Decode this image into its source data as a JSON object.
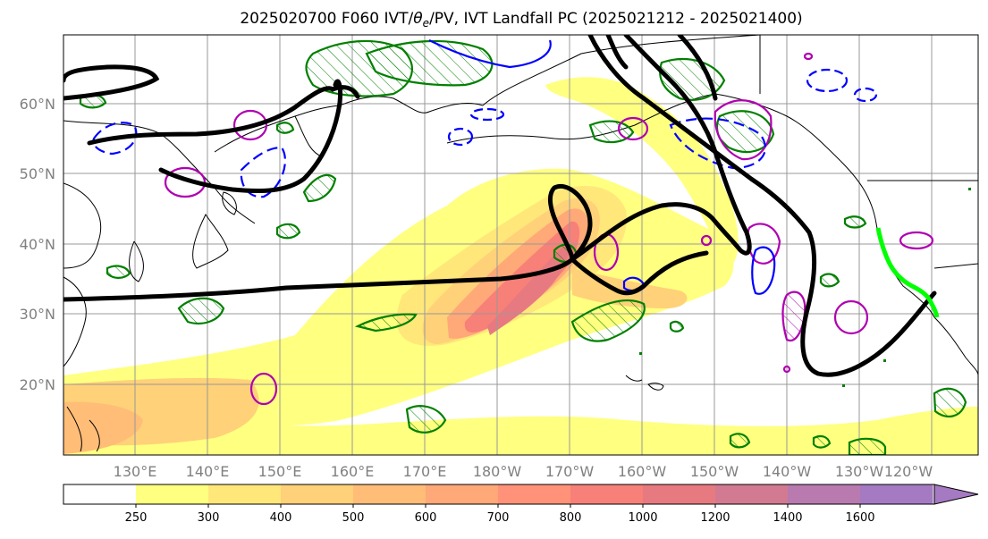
{
  "title_pre": "2025020700 F060 IVT/",
  "title_theta": "θ",
  "title_sub": "e",
  "title_post": "/PV, IVT Landfall PC (2025021212 - 2025021400)",
  "lat_labels": [
    "60°N",
    "50°N",
    "40°N",
    "30°N",
    "20°N"
  ],
  "lon_labels": [
    "130°E",
    "140°E",
    "150°E",
    "160°E",
    "170°E",
    "180°W",
    "170°W",
    "160°W",
    "150°W",
    "140°W",
    "130°W",
    "120°W"
  ],
  "colorbar": {
    "ticks": [
      "250",
      "300",
      "400",
      "500",
      "600",
      "700",
      "800",
      "1000",
      "1200",
      "1400",
      "1600"
    ],
    "colors": [
      "#ffffff",
      "#ffff80",
      "#ffe77a",
      "#ffd178",
      "#ffbd78",
      "#ffa878",
      "#ff9278",
      "#f78078",
      "#e77a80",
      "#d27a92",
      "#b87aaf",
      "#a57ac2"
    ]
  },
  "colors": {
    "ivt_low": "#ffff80",
    "ivt_mid": "#ffc878",
    "ivt_high": "#f08078",
    "thetae": "#000000",
    "pv_green": "#008000",
    "magenta": "#b000b0",
    "blue": "#0000ff",
    "landfall": "#00ff00",
    "grid": "#999999",
    "coast": "#000000"
  }
}
